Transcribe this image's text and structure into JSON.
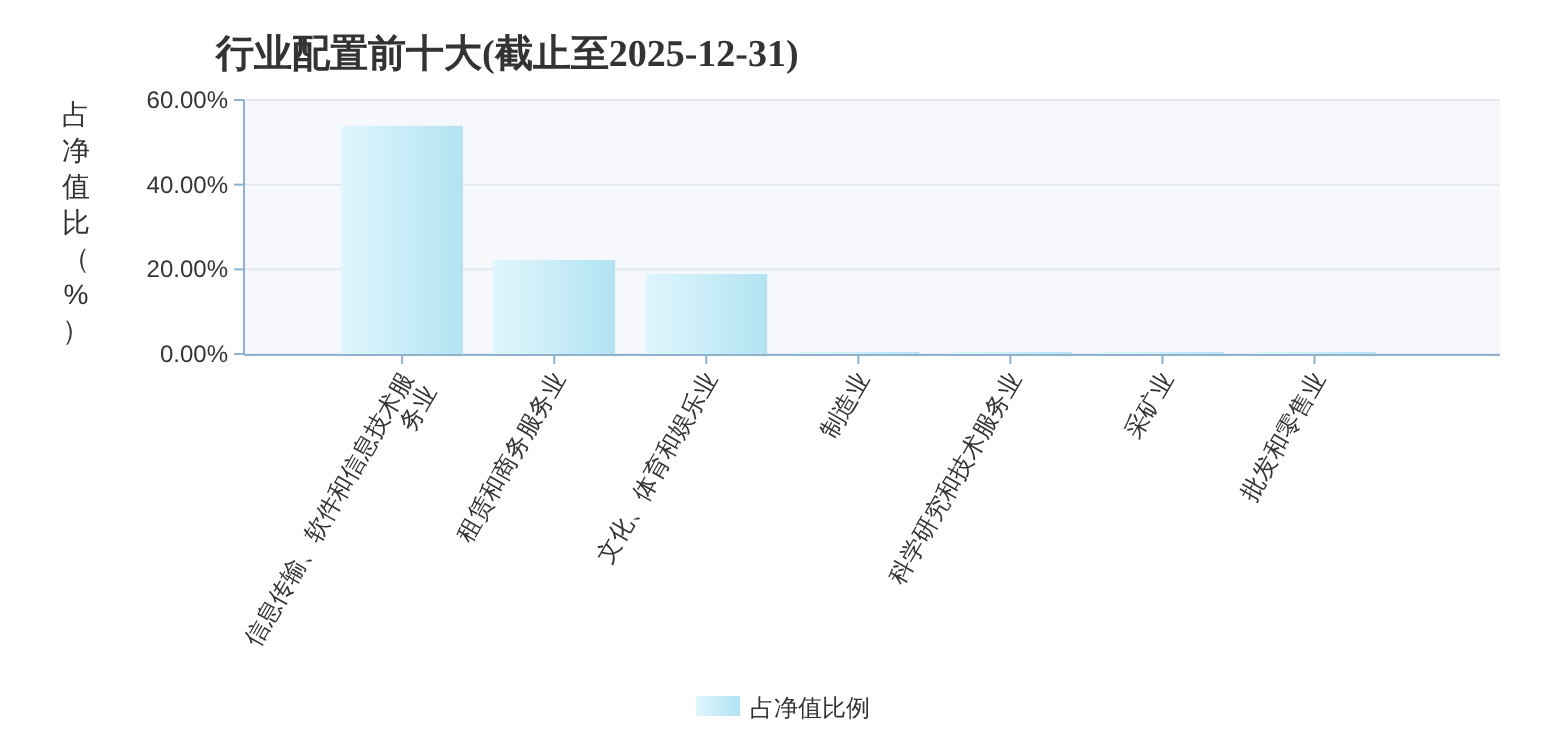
{
  "chart_data": {
    "type": "bar",
    "title": "行业配置前十大(截止至2025-12-31)",
    "ylabel": "占净值比（%）",
    "categories": [
      "信息传输、软件和信息技术服务业",
      "租赁和商务服务业",
      "文化、体育和娱乐业",
      "制造业",
      "科学研究和技术服务业",
      "采矿业",
      "批发和零售业"
    ],
    "series": [
      {
        "name": "占净值比例",
        "color": "#b3e3f3",
        "values": [
          53.9,
          22.2,
          18.9,
          0.5,
          0.5,
          0.5,
          0.5
        ]
      }
    ],
    "ylim": [
      0,
      60
    ],
    "yticks": [
      {
        "value": 0,
        "label": "0.00%"
      },
      {
        "value": 20,
        "label": "20.00%"
      },
      {
        "value": 40,
        "label": "40.00%"
      },
      {
        "value": 60,
        "label": "60.00%"
      }
    ],
    "grid": "y",
    "legend": "bottom"
  }
}
